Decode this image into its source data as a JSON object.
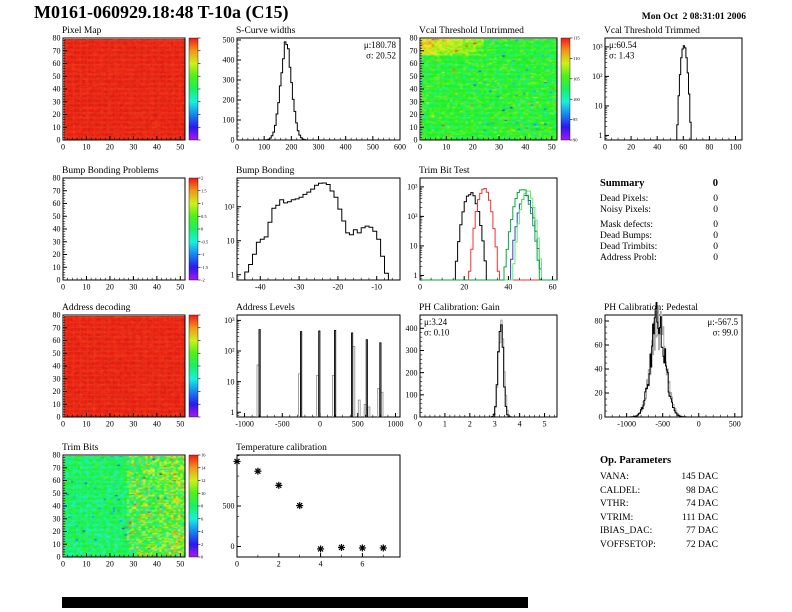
{
  "page": {
    "title": "M0161-060929.18:48 T-10a (C15)",
    "datetime": "Mon Oct  2 08:31:01 2006"
  },
  "summary": {
    "heading": "Summary",
    "heading_value": "0",
    "rows": [
      [
        "Dead Pixels:",
        "0"
      ],
      [
        "Noisy Pixels:",
        "0"
      ],
      [
        "Mask defects:",
        "0"
      ],
      [
        "Dead Bumps:",
        "0"
      ],
      [
        "Dead Trimbits:",
        "0"
      ],
      [
        "Address Probl:",
        "0"
      ]
    ]
  },
  "op_parameters": {
    "heading": "Op. Parameters",
    "rows": [
      [
        "VANA:",
        "145 DAC"
      ],
      [
        "CALDEL:",
        "98 DAC"
      ],
      [
        "VTHR:",
        "74 DAC"
      ],
      [
        "VTRIM:",
        "111 DAC"
      ],
      [
        "IBIAS_DAC:",
        "77 DAC"
      ],
      [
        "VOFFSETOP:",
        "72 DAC"
      ]
    ]
  },
  "chart_data": [
    {
      "id": "pixel-map",
      "type": "heatmap",
      "title": "Pixel Map",
      "style": "uniform-red",
      "seed": 7,
      "xlim": [
        0,
        52
      ],
      "ylim": [
        0,
        80
      ],
      "x_ticks": [
        0,
        10,
        20,
        30,
        40,
        50
      ],
      "y_ticks": [
        0,
        10,
        20,
        30,
        40,
        50,
        60,
        70,
        80
      ],
      "x_minor": 2,
      "y_minor": 2,
      "colorbar": {
        "labels": []
      }
    },
    {
      "id": "s-curve-widths",
      "type": "histogram",
      "title": "S-Curve widths",
      "xlim": [
        0,
        600
      ],
      "ylim": [
        0,
        510
      ],
      "x_ticks": [
        0,
        100,
        200,
        300,
        400,
        500,
        600
      ],
      "y_ticks": [
        0,
        100,
        200,
        300,
        400,
        500
      ],
      "x_minor": 20,
      "y_minor": 20,
      "stats": {
        "pos": "tr",
        "lines": [
          "μ:180.78",
          "σ: 20.52"
        ]
      },
      "series": [
        {
          "color": "#000000",
          "shape": "gauss",
          "mu": 180.78,
          "sigma": 20.52,
          "peak": 480,
          "binw": 6,
          "noise": 0.06,
          "seed": 3
        }
      ]
    },
    {
      "id": "vcal-untrimmed",
      "type": "heatmap",
      "title": "Vcal Threshold Untrimmed",
      "style": "noisy-threshold",
      "seed": 11,
      "xlim": [
        0,
        52
      ],
      "ylim": [
        0,
        80
      ],
      "x_ticks": [
        0,
        10,
        20,
        30,
        40,
        50
      ],
      "y_ticks": [
        0,
        10,
        20,
        30,
        40,
        50,
        60,
        70,
        80
      ],
      "x_minor": 2,
      "y_minor": 2,
      "colorbar": {
        "labels": [
          "115",
          "110",
          "105",
          "100",
          "95",
          "90"
        ]
      }
    },
    {
      "id": "vcal-trimmed",
      "type": "histogram",
      "title": "Vcal Threshold Trimmed",
      "xlim": [
        0,
        105
      ],
      "yscale": "log",
      "ylim": [
        0.7,
        2000
      ],
      "x_ticks": [
        0,
        20,
        40,
        60,
        80,
        100
      ],
      "x_minor": 5,
      "y_tick_labels": [
        "1",
        "10",
        "10²",
        "10³"
      ],
      "stats": {
        "pos": "tl",
        "lines": [
          "μ:60.54",
          "σ: 1.43"
        ]
      },
      "series": [
        {
          "color": "#000000",
          "shape": "gauss",
          "mu": 60.54,
          "sigma": 1.43,
          "peak": 1150,
          "binw": 1,
          "noise": 0.05,
          "seed": 5
        }
      ]
    },
    {
      "id": "bump-problems",
      "type": "heatmap",
      "title": "Bump Bonding Problems",
      "style": "empty",
      "seed": 1,
      "xlim": [
        0,
        52
      ],
      "ylim": [
        0,
        80
      ],
      "x_ticks": [
        0,
        10,
        20,
        30,
        40,
        50
      ],
      "y_ticks": [
        0,
        10,
        20,
        30,
        40,
        50,
        60,
        70,
        80
      ],
      "x_minor": 2,
      "y_minor": 2,
      "colorbar": {
        "labels": [
          "2",
          "1.5",
          "1",
          "0.5",
          "0",
          "-0.5",
          "-1",
          "-1.5",
          "-2"
        ]
      }
    },
    {
      "id": "bump-bonding",
      "type": "histogram",
      "title": "Bump Bonding",
      "xlim": [
        -46,
        -4
      ],
      "yscale": "log",
      "ylim": [
        0.7,
        700
      ],
      "x_ticks": [
        -40,
        -30,
        -20,
        -10
      ],
      "x_minor": 2,
      "y_tick_labels": [
        "1",
        "10",
        "10²"
      ],
      "series": [
        {
          "color": "#000000",
          "shape": "steps",
          "points": [
            [
              -44,
              1.2
            ],
            [
              -43,
              2
            ],
            [
              -42,
              4
            ],
            [
              -41,
              9
            ],
            [
              -40,
              11
            ],
            [
              -39,
              13
            ],
            [
              -38,
              35
            ],
            [
              -37,
              90
            ],
            [
              -36,
              110
            ],
            [
              -35,
              160
            ],
            [
              -34,
              130
            ],
            [
              -33,
              140
            ],
            [
              -32,
              160
            ],
            [
              -31,
              170
            ],
            [
              -30,
              190
            ],
            [
              -29,
              230
            ],
            [
              -28,
              270
            ],
            [
              -27,
              330
            ],
            [
              -26,
              430
            ],
            [
              -25,
              490
            ],
            [
              -24,
              500
            ],
            [
              -23,
              450
            ],
            [
              -22,
              290
            ],
            [
              -21,
              190
            ],
            [
              -20,
              85
            ],
            [
              -19,
              38
            ],
            [
              -18,
              17
            ],
            [
              -17,
              15
            ],
            [
              -16,
              21
            ],
            [
              -15,
              17
            ],
            [
              -14,
              24
            ],
            [
              -13,
              27
            ],
            [
              -12,
              25
            ],
            [
              -11,
              19
            ],
            [
              -10,
              11
            ],
            [
              -9,
              3.5
            ],
            [
              -8,
              1.1
            ],
            [
              -7,
              0.5
            ]
          ]
        }
      ]
    },
    {
      "id": "trim-bit-test",
      "type": "histogram",
      "title": "Trim Bit Test",
      "xlim": [
        0,
        62
      ],
      "yscale": "log",
      "ylim": [
        0.7,
        2000
      ],
      "x_ticks": [
        0,
        20,
        40,
        60
      ],
      "x_minor": 5,
      "y_tick_labels": [
        "1",
        "10",
        "10²",
        "10³"
      ],
      "series": [
        {
          "color": "#000000",
          "shape": "gauss",
          "mu": 23,
          "sigma": 2.0,
          "peak": 620,
          "binw": 1,
          "noise": 0.1,
          "seed": 21
        },
        {
          "color": "#ee3333",
          "shape": "gauss",
          "mu": 29,
          "sigma": 1.8,
          "peak": 900,
          "binw": 1,
          "noise": 0.1,
          "seed": 22
        },
        {
          "color": "#3344cc",
          "shape": "gauss",
          "mu": 47.8,
          "sigma": 2.0,
          "peak": 500,
          "binw": 1,
          "noise": 0.1,
          "seed": 23
        },
        {
          "color": "#66ee66",
          "shape": "gauss",
          "mu": 48.6,
          "sigma": 1.8,
          "peak": 750,
          "binw": 1,
          "noise": 0.1,
          "seed": 24
        },
        {
          "color": "#00aa44",
          "shape": "gauss",
          "mu": 46.2,
          "sigma": 2.2,
          "peak": 850,
          "binw": 1,
          "noise": 0.1,
          "seed": 25
        }
      ]
    },
    {
      "id": "address-decoding",
      "type": "heatmap",
      "title": "Address decoding",
      "style": "uniform-red",
      "seed": 9,
      "xlim": [
        0,
        52
      ],
      "ylim": [
        0,
        80
      ],
      "x_ticks": [
        0,
        10,
        20,
        30,
        40,
        50
      ],
      "y_ticks": [
        0,
        10,
        20,
        30,
        40,
        50,
        60,
        70,
        80
      ],
      "x_minor": 2,
      "y_minor": 2,
      "colorbar": {
        "labels": []
      }
    },
    {
      "id": "address-levels",
      "type": "histogram",
      "title": "Address Levels",
      "xlim": [
        -1100,
        1060
      ],
      "yscale": "log",
      "ylim": [
        0.7,
        1500
      ],
      "x_ticks": [
        -1000,
        -500,
        0,
        500,
        1000
      ],
      "x_minor": 100,
      "y_tick_labels": [
        "1",
        "10",
        "10²",
        "10³"
      ],
      "series": [
        {
          "color": "#999999",
          "shape": "spikes",
          "w": 26,
          "points": [
            [
              -822,
              35
            ],
            [
              -272,
              18
            ],
            [
              -32,
              16
            ],
            [
              178,
              16
            ],
            [
              448,
              140
            ],
            [
              520,
              2.5
            ],
            [
              598,
              1.8
            ],
            [
              648,
              1.5
            ],
            [
              778,
              6
            ],
            [
              822,
              4.5
            ]
          ]
        },
        {
          "color": "#000000",
          "shape": "spikes",
          "w": 16,
          "points": [
            [
              -800,
              500
            ],
            [
              -250,
              430
            ],
            [
              -10,
              450
            ],
            [
              200,
              470
            ],
            [
              425,
              390
            ],
            [
              620,
              235
            ],
            [
              800,
              185
            ]
          ]
        }
      ]
    },
    {
      "id": "ph-gain",
      "type": "histogram",
      "title": "PH Calibration: Gain",
      "xlim": [
        0,
        5.5
      ],
      "ylim": [
        0,
        460
      ],
      "x_ticks": [
        0,
        1,
        2,
        3,
        4,
        5
      ],
      "y_ticks": [
        0,
        100,
        200,
        300,
        400
      ],
      "x_minor": 0.2,
      "y_minor": 20,
      "stats": {
        "pos": "tl",
        "lines": [
          "μ:3.24",
          "σ: 0.10"
        ]
      },
      "series": [
        {
          "color": "#aaaaaa",
          "shape": "gauss",
          "mu": 3.26,
          "sigma": 0.11,
          "peak": 420,
          "binw": 0.06,
          "noise": 0.15,
          "seed": 31
        },
        {
          "color": "#000000",
          "shape": "gauss",
          "mu": 3.24,
          "sigma": 0.1,
          "peak": 435,
          "binw": 0.06,
          "noise": 0.1,
          "seed": 30
        }
      ]
    },
    {
      "id": "ph-pedestal",
      "type": "histogram",
      "title": "PH Calibration: Pedestal",
      "xlim": [
        -1300,
        600
      ],
      "ylim": [
        0,
        85
      ],
      "x_ticks": [
        -1000,
        -500,
        0,
        500
      ],
      "y_ticks": [
        0,
        20,
        40,
        60,
        80
      ],
      "x_minor": 100,
      "y_minor": 5,
      "stats": {
        "pos": "tr",
        "lines": [
          "μ:-567.5",
          "σ: 99.0"
        ]
      },
      "series": [
        {
          "color": "#aaaaaa",
          "shape": "gauss",
          "mu": -560,
          "sigma": 105,
          "peak": 75,
          "binw": 12,
          "noise": 0.3,
          "seed": 41
        },
        {
          "color": "#000000",
          "shape": "gauss",
          "mu": -567.5,
          "sigma": 99,
          "peak": 78,
          "binw": 12,
          "noise": 0.28,
          "seed": 40
        }
      ]
    },
    {
      "id": "trim-bits",
      "type": "heatmap",
      "title": "Trim Bits",
      "style": "noisy-trimbits",
      "seed": 13,
      "xlim": [
        0,
        52
      ],
      "ylim": [
        0,
        80
      ],
      "x_ticks": [
        0,
        10,
        20,
        30,
        40,
        50
      ],
      "y_ticks": [
        0,
        10,
        20,
        30,
        40,
        50,
        60,
        70,
        80
      ],
      "x_minor": 2,
      "y_minor": 2,
      "colorbar": {
        "labels": [
          "16",
          "14",
          "12",
          "10",
          "8",
          "6",
          "4",
          "2",
          "0"
        ]
      }
    },
    {
      "id": "temp-calibration",
      "type": "scatter",
      "title": "Temperature calibration",
      "xlim": [
        0,
        7.8
      ],
      "ylim": [
        -130,
        1130
      ],
      "x_ticks": [
        0,
        2,
        4,
        6
      ],
      "y_ticks": [
        0,
        500
      ],
      "x_minor": 1,
      "y_minor": 250,
      "marker": "asterisk",
      "points": [
        [
          0,
          1050
        ],
        [
          1,
          930
        ],
        [
          2,
          755
        ],
        [
          3,
          505
        ],
        [
          4,
          -30
        ],
        [
          5,
          -12
        ],
        [
          6,
          -18
        ],
        [
          7,
          -18
        ]
      ]
    }
  ]
}
